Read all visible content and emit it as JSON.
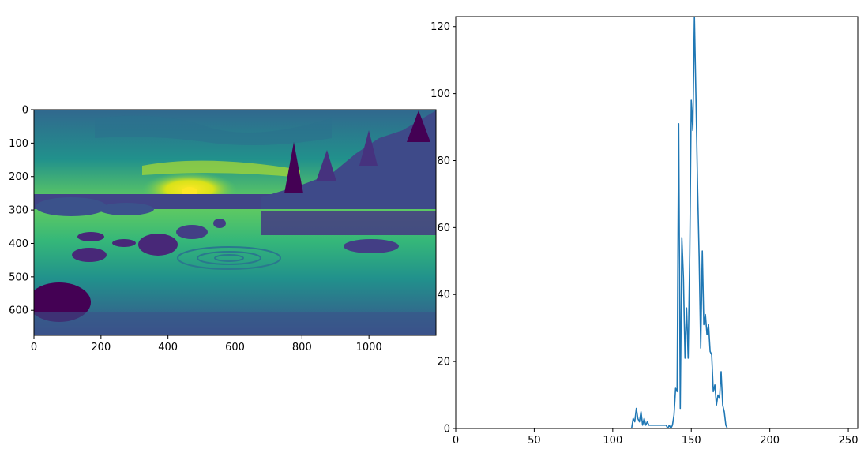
{
  "chart_data": [
    {
      "type": "heatmap",
      "colormap": "viridis",
      "xlim": [
        0,
        1200
      ],
      "ylim": [
        0,
        675
      ],
      "y_inverted": true,
      "xticks": [
        0,
        200,
        400,
        600,
        800,
        1000
      ],
      "xtick_labels": [
        "0",
        "200",
        "400",
        "600",
        "800",
        "1000"
      ],
      "yticks": [
        0,
        100,
        200,
        300,
        400,
        500,
        600
      ],
      "ytick_labels": [
        "0",
        "100",
        "200",
        "300",
        "400",
        "500",
        "600"
      ],
      "image_content": "grayscale lakeside sunset landscape with rocks and water ripples, shown in viridis colormap"
    },
    {
      "type": "line",
      "color": "#1f77b4",
      "xlim": [
        0,
        256
      ],
      "ylim": [
        0,
        123
      ],
      "xticks": [
        0,
        50,
        100,
        150,
        200,
        250
      ],
      "xtick_labels": [
        "0",
        "50",
        "100",
        "150",
        "200",
        "250"
      ],
      "yticks": [
        0,
        20,
        40,
        60,
        80,
        100,
        120
      ],
      "ytick_labels": [
        "0",
        "20",
        "40",
        "60",
        "80",
        "100",
        "120"
      ],
      "x": [
        0,
        112,
        113,
        114,
        115,
        116,
        117,
        118,
        119,
        120,
        121,
        122,
        123,
        124,
        125,
        130,
        134,
        135,
        136,
        137,
        138,
        139,
        140,
        141,
        142,
        143,
        144,
        145,
        146,
        147,
        148,
        149,
        150,
        151,
        152,
        153,
        154,
        155,
        156,
        157,
        158,
        159,
        160,
        161,
        162,
        163,
        164,
        165,
        166,
        167,
        168,
        169,
        170,
        171,
        172,
        173,
        174,
        175,
        176,
        256
      ],
      "y": [
        0,
        0,
        3,
        2,
        6,
        3,
        2,
        5,
        1,
        3,
        1,
        2,
        1,
        1,
        1,
        1,
        1,
        0,
        1,
        0,
        1,
        4,
        12,
        11,
        91,
        6,
        57,
        45,
        21,
        36,
        21,
        52,
        98,
        89,
        123,
        98,
        72,
        51,
        24,
        53,
        31,
        34,
        28,
        31,
        23,
        22,
        11,
        13,
        7,
        10,
        9,
        17,
        7,
        5,
        1,
        0,
        0,
        0,
        0,
        0
      ]
    }
  ]
}
